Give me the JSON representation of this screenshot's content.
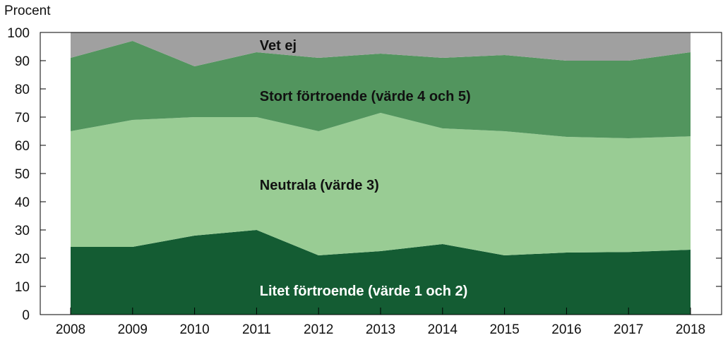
{
  "chart_data": {
    "type": "area",
    "stacked": true,
    "ylabel": "Procent",
    "xlabel": "",
    "ylim": [
      0,
      100
    ],
    "yticks": [
      0,
      10,
      20,
      30,
      40,
      50,
      60,
      70,
      80,
      90,
      100
    ],
    "x": [
      2008,
      2009,
      2010,
      2011,
      2012,
      2013,
      2014,
      2015,
      2016,
      2017,
      2018
    ],
    "x_labels": [
      "2008",
      "2009",
      "2010",
      "2011",
      "2012",
      "2013",
      "2014",
      "2015",
      "2016",
      "2017",
      "2018"
    ],
    "series": [
      {
        "name": "Litet förtroende (värde 1 och 2)",
        "color": "#145c33",
        "values": [
          24,
          24,
          28,
          30,
          21,
          22.5,
          25,
          21,
          22,
          22.2,
          23
        ]
      },
      {
        "name": "Neutrala (värde 3)",
        "color": "#99cc94",
        "values": [
          41,
          45,
          42,
          40,
          44,
          49,
          41,
          44,
          41,
          40.3,
          40.2
        ]
      },
      {
        "name": "Stort förtroende (värde 4 och 5)",
        "color": "#52955e",
        "values": [
          26,
          28,
          18,
          23,
          26,
          21,
          25,
          27,
          27,
          27.5,
          29.8
        ]
      },
      {
        "name": "Vet ej",
        "color": "#a0a0a0",
        "values": [
          9,
          3,
          12,
          7,
          9,
          7.5,
          9,
          8,
          10,
          10,
          7
        ]
      }
    ],
    "grid": false
  }
}
